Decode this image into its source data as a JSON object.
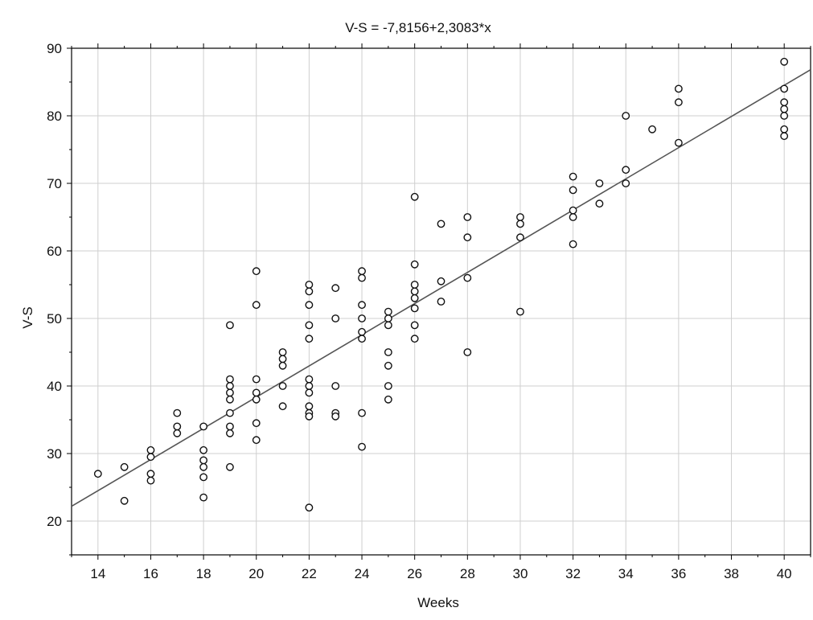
{
  "chart_data": {
    "type": "scatter",
    "title": "V-S = -7,8156+2,3083*x",
    "xlabel": "Weeks",
    "ylabel": "V-S",
    "xlim": [
      13,
      41
    ],
    "ylim": [
      15,
      90
    ],
    "xticks": [
      14,
      16,
      18,
      20,
      22,
      24,
      26,
      28,
      30,
      32,
      34,
      36,
      38,
      40
    ],
    "yticks": [
      20,
      30,
      40,
      50,
      60,
      70,
      80,
      90
    ],
    "grid": true,
    "regression": {
      "intercept": -7.8156,
      "slope": 2.3083
    },
    "points": [
      [
        14,
        27
      ],
      [
        15,
        28
      ],
      [
        15,
        23
      ],
      [
        16,
        30.5
      ],
      [
        16,
        29.5
      ],
      [
        16,
        27
      ],
      [
        16,
        26
      ],
      [
        17,
        36
      ],
      [
        17,
        34
      ],
      [
        17,
        33
      ],
      [
        18,
        34
      ],
      [
        18,
        30.5
      ],
      [
        18,
        29
      ],
      [
        18,
        28
      ],
      [
        18,
        26.5
      ],
      [
        18,
        23.5
      ],
      [
        19,
        49
      ],
      [
        19,
        41
      ],
      [
        19,
        40
      ],
      [
        19,
        39
      ],
      [
        19,
        38
      ],
      [
        19,
        36
      ],
      [
        19,
        34
      ],
      [
        19,
        33
      ],
      [
        19,
        28
      ],
      [
        20,
        57
      ],
      [
        20,
        52
      ],
      [
        20,
        41
      ],
      [
        20,
        39
      ],
      [
        20,
        38
      ],
      [
        20,
        34.5
      ],
      [
        20,
        32
      ],
      [
        21,
        45
      ],
      [
        21,
        44
      ],
      [
        21,
        43
      ],
      [
        21,
        40
      ],
      [
        21,
        37
      ],
      [
        22,
        55
      ],
      [
        22,
        54
      ],
      [
        22,
        52
      ],
      [
        22,
        49
      ],
      [
        22,
        47
      ],
      [
        22,
        41
      ],
      [
        22,
        40
      ],
      [
        22,
        39
      ],
      [
        22,
        37
      ],
      [
        22,
        36
      ],
      [
        22,
        35.5
      ],
      [
        22,
        22
      ],
      [
        23,
        54.5
      ],
      [
        23,
        50
      ],
      [
        23,
        40
      ],
      [
        23,
        36
      ],
      [
        23,
        35.5
      ],
      [
        24,
        57
      ],
      [
        24,
        56
      ],
      [
        24,
        52
      ],
      [
        24,
        50
      ],
      [
        24,
        48
      ],
      [
        24,
        47
      ],
      [
        24,
        36
      ],
      [
        24,
        31
      ],
      [
        25,
        51
      ],
      [
        25,
        50
      ],
      [
        25,
        49
      ],
      [
        25,
        45
      ],
      [
        25,
        43
      ],
      [
        25,
        40
      ],
      [
        25,
        38
      ],
      [
        26,
        68
      ],
      [
        26,
        58
      ],
      [
        26,
        55
      ],
      [
        26,
        54
      ],
      [
        26,
        53
      ],
      [
        26,
        51.5
      ],
      [
        26,
        49
      ],
      [
        26,
        47
      ],
      [
        27,
        64
      ],
      [
        27,
        55.5
      ],
      [
        27,
        52.5
      ],
      [
        28,
        65
      ],
      [
        28,
        62
      ],
      [
        28,
        56
      ],
      [
        28,
        45
      ],
      [
        30,
        65
      ],
      [
        30,
        64
      ],
      [
        30,
        62
      ],
      [
        30,
        51
      ],
      [
        32,
        71
      ],
      [
        32,
        69
      ],
      [
        32,
        66
      ],
      [
        32,
        65
      ],
      [
        32,
        61
      ],
      [
        33,
        70
      ],
      [
        33,
        67
      ],
      [
        34,
        80
      ],
      [
        34,
        72
      ],
      [
        34,
        70
      ],
      [
        35,
        78
      ],
      [
        36,
        84
      ],
      [
        36,
        82
      ],
      [
        36,
        76
      ],
      [
        40,
        88
      ],
      [
        40,
        84
      ],
      [
        40,
        82
      ],
      [
        40,
        81
      ],
      [
        40,
        80
      ],
      [
        40,
        78
      ],
      [
        40,
        77
      ]
    ]
  }
}
